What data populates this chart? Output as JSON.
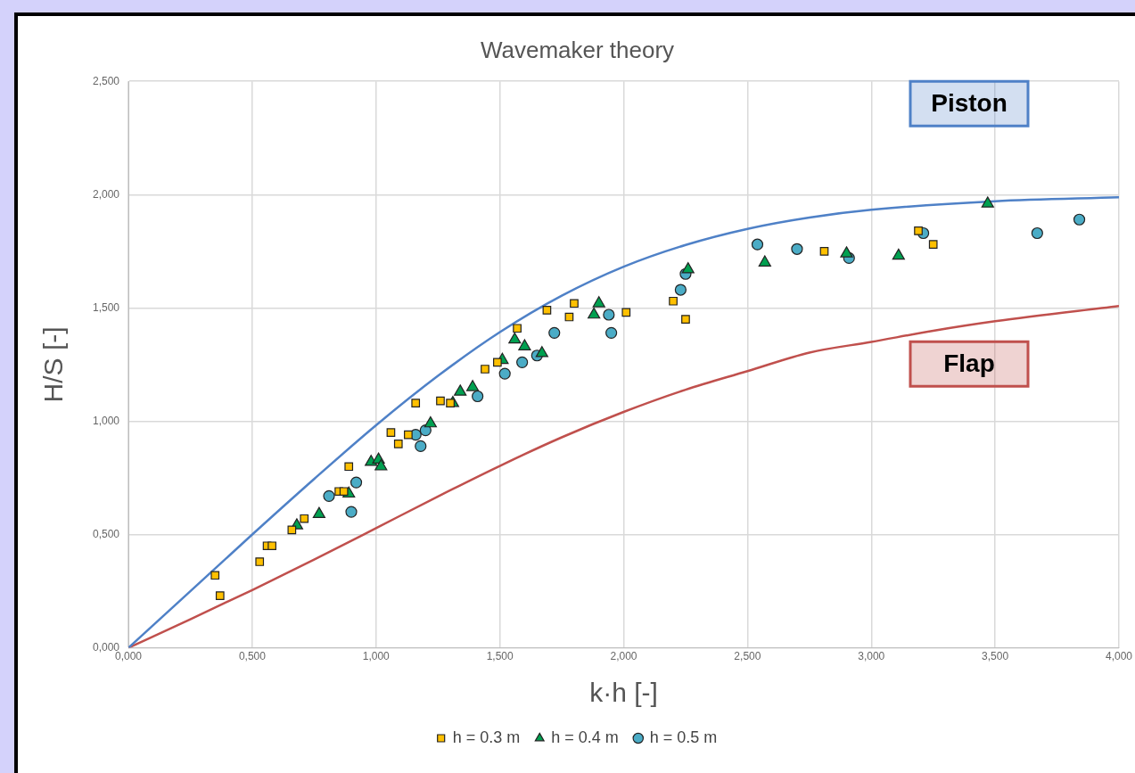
{
  "chart_data": {
    "type": "scatter",
    "title": "Wavemaker theory",
    "xlabel": "k·h [-]",
    "ylabel": "H/S [-]",
    "xlim": [
      0,
      4
    ],
    "ylim": [
      0,
      2.5
    ],
    "xticks": [
      {
        "value": 0,
        "label": "0,000"
      },
      {
        "value": 0.5,
        "label": "0,500"
      },
      {
        "value": 1,
        "label": "1,000"
      },
      {
        "value": 1.5,
        "label": "1,500"
      },
      {
        "value": 2,
        "label": "2,000"
      },
      {
        "value": 2.5,
        "label": "2,500"
      },
      {
        "value": 3,
        "label": "3,000"
      },
      {
        "value": 3.5,
        "label": "3,500"
      },
      {
        "value": 4,
        "label": "4,000"
      }
    ],
    "yticks": [
      {
        "value": 0,
        "label": "0,000"
      },
      {
        "value": 0.5,
        "label": "0,500"
      },
      {
        "value": 1,
        "label": "1,000"
      },
      {
        "value": 1.5,
        "label": "1,500"
      },
      {
        "value": 2,
        "label": "2,000"
      },
      {
        "value": 2.5,
        "label": "2,500"
      }
    ],
    "grid": true,
    "legend": "bottom",
    "series": [
      {
        "name": "Piston",
        "type": "line",
        "color": "#4f81c7",
        "x": [
          0,
          0.25,
          0.5,
          0.75,
          1,
          1.25,
          1.5,
          1.75,
          2,
          2.25,
          2.5,
          2.75,
          3,
          3.5,
          4
        ],
        "values": [
          0,
          0.25,
          0.5,
          0.745,
          0.982,
          1.2,
          1.393,
          1.554,
          1.682,
          1.778,
          1.849,
          1.899,
          1.933,
          1.971,
          1.988
        ]
      },
      {
        "name": "Flap",
        "type": "line",
        "color": "#c0504d",
        "x": [
          0,
          0.25,
          0.5,
          0.75,
          1,
          1.25,
          1.5,
          1.75,
          2,
          2.25,
          2.5,
          2.75,
          3,
          3.25,
          3.5,
          4
        ],
        "values": [
          0,
          0.126,
          0.255,
          0.389,
          0.528,
          0.668,
          0.803,
          0.929,
          1.041,
          1.139,
          1.221,
          1.303,
          1.35,
          1.399,
          1.441,
          1.508
        ]
      },
      {
        "name": "h = 0.3 m",
        "marker": "square",
        "color": "#ffc000",
        "x": [
          0.35,
          0.37,
          0.53,
          0.56,
          0.58,
          0.66,
          0.71,
          0.85,
          0.87,
          0.89,
          1.06,
          1.09,
          1.13,
          1.16,
          1.26,
          1.3,
          1.44,
          1.49,
          1.57,
          1.69,
          1.78,
          1.8,
          2.01,
          2.2,
          2.25,
          2.81,
          3.19,
          3.25
        ],
        "values": [
          0.32,
          0.23,
          0.38,
          0.45,
          0.45,
          0.52,
          0.57,
          0.69,
          0.69,
          0.8,
          0.95,
          0.9,
          0.94,
          1.08,
          1.09,
          1.08,
          1.23,
          1.26,
          1.41,
          1.49,
          1.46,
          1.52,
          1.48,
          1.53,
          1.45,
          1.75,
          1.84,
          1.78
        ]
      },
      {
        "name": "h = 0.4 m",
        "marker": "triangle",
        "color": "#00a050",
        "x": [
          0.68,
          0.77,
          0.89,
          0.98,
          1.01,
          1.02,
          1.22,
          1.31,
          1.34,
          1.39,
          1.51,
          1.56,
          1.6,
          1.67,
          1.88,
          1.9,
          2.26,
          2.57,
          2.9,
          3.11,
          3.47
        ],
        "values": [
          0.54,
          0.59,
          0.68,
          0.82,
          0.83,
          0.8,
          0.99,
          1.08,
          1.13,
          1.15,
          1.27,
          1.36,
          1.33,
          1.3,
          1.47,
          1.52,
          1.67,
          1.7,
          1.74,
          1.73,
          1.96
        ]
      },
      {
        "name": "h = 0.5 m",
        "marker": "circle",
        "color": "#4bacc6",
        "x": [
          0.81,
          0.9,
          0.92,
          1.16,
          1.18,
          1.2,
          1.41,
          1.52,
          1.59,
          1.65,
          1.72,
          1.94,
          1.95,
          2.23,
          2.25,
          2.54,
          2.7,
          2.91,
          3.21,
          3.67,
          3.84
        ],
        "values": [
          0.67,
          0.6,
          0.73,
          0.94,
          0.89,
          0.96,
          1.11,
          1.21,
          1.26,
          1.29,
          1.39,
          1.47,
          1.39,
          1.58,
          1.65,
          1.78,
          1.76,
          1.72,
          1.83,
          1.83,
          1.89
        ]
      }
    ]
  }
}
